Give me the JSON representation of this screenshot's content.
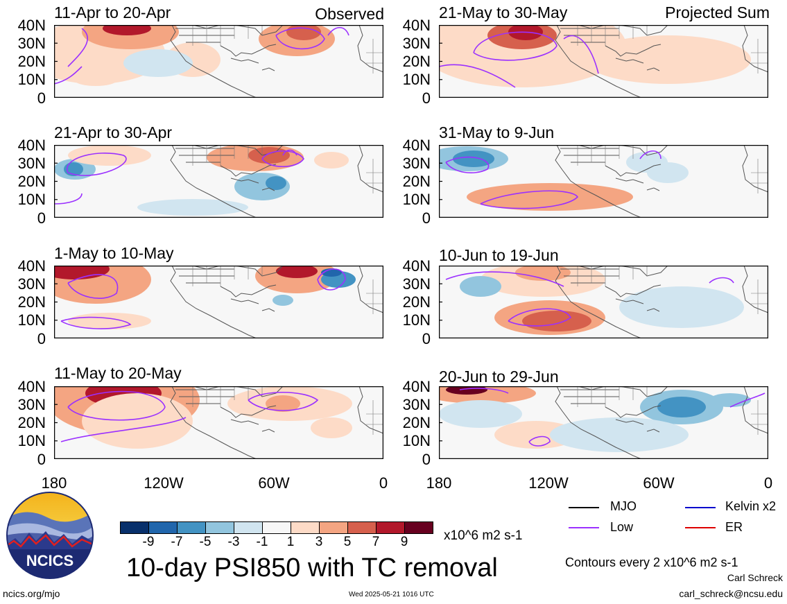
{
  "panels": [
    {
      "id": "p1",
      "title": "11-Apr to 20-Apr",
      "note": "Observed"
    },
    {
      "id": "p2",
      "title": "21-Apr to 30-Apr",
      "note": ""
    },
    {
      "id": "p3",
      "title": "1-May to 10-May",
      "note": ""
    },
    {
      "id": "p4",
      "title": "11-May to 20-May",
      "note": ""
    },
    {
      "id": "p5",
      "title": "21-May to 30-May",
      "note": "Projected Sum"
    },
    {
      "id": "p6",
      "title": "31-May to 9-Jun",
      "note": ""
    },
    {
      "id": "p7",
      "title": "10-Jun to 19-Jun",
      "note": ""
    },
    {
      "id": "p8",
      "title": "20-Jun to 29-Jun",
      "note": ""
    }
  ],
  "lat_labels": [
    "40N",
    "30N",
    "20N",
    "10N",
    "0"
  ],
  "lon_labels": [
    "180",
    "120W",
    "60W",
    "0"
  ],
  "colorbar": {
    "ticks": [
      "-9",
      "-7",
      "-5",
      "-3",
      "-1",
      "1",
      "3",
      "5",
      "7",
      "9"
    ],
    "colors": [
      "#08306b",
      "#2166ac",
      "#4393c3",
      "#92c5de",
      "#d1e5f0",
      "#f7f7f7",
      "#fddbc7",
      "#f4a582",
      "#d6604d",
      "#b2182b",
      "#67001f"
    ],
    "units": "x10^6 m2 s-1"
  },
  "legend": {
    "mjo": "MJO",
    "kelvin": "Kelvin x2",
    "low": "Low",
    "er": "ER",
    "mjo_color": "#000000",
    "kelvin_color": "#0000cc",
    "low_color": "#9b30ff",
    "er_color": "#dd0000"
  },
  "main_title": "10-day PSI850 with TC removal",
  "contour_note": "Contours every 2 x10^6 m2 s-1",
  "author": "Carl Schreck",
  "email": "carl_schreck@ncsu.edu",
  "site": "ncics.org/mjo",
  "timestamp": "Wed 2025-05-21 1016 UTC",
  "logo_text": "NCICS"
}
